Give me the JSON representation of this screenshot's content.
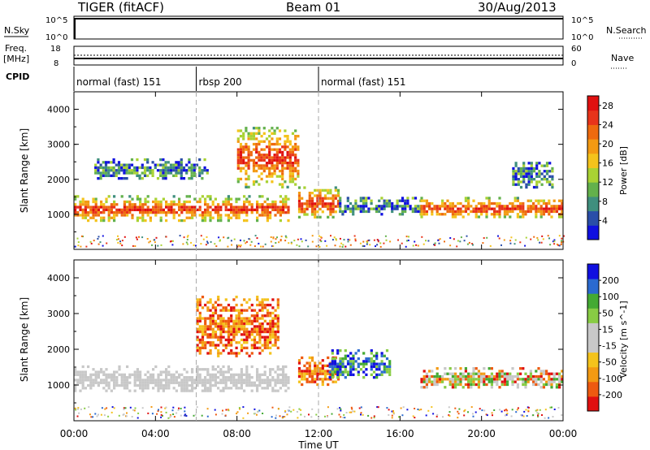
{
  "header": {
    "radar": "TIGER (fitACF)",
    "beam": "Beam 01",
    "date": "30/Aug/2013"
  },
  "meta_rows": {
    "nsky": {
      "label": "N.Sky",
      "ticks": [
        "10^5",
        "10^0"
      ]
    },
    "nsearch": {
      "label": "N.Search",
      "ticks": [
        "10^5",
        "10^0"
      ]
    },
    "freq": {
      "label_line1": "Freq.",
      "label_line2": "[MHz]",
      "ticks": [
        "18",
        "8"
      ]
    },
    "nave": {
      "label": "Nave",
      "ticks": [
        "60",
        "0"
      ]
    },
    "cpid": {
      "label": "CPID",
      "segments": [
        {
          "text": "normal (fast) 151",
          "start_hour": 0
        },
        {
          "text": "rbsp 200",
          "start_hour": 6
        },
        {
          "text": "normal (fast) 151",
          "start_hour": 12
        }
      ]
    }
  },
  "chart_data": [
    {
      "type": "heatmap",
      "title": "",
      "xlabel": "Time UT",
      "ylabel": "Slant Range [km]",
      "xlim": [
        0,
        24
      ],
      "ylim": [
        0,
        4500
      ],
      "x_ticks": [
        "00:00",
        "04:00",
        "08:00",
        "12:00",
        "16:00",
        "20:00",
        "00:00"
      ],
      "y_ticks": [
        1000,
        2000,
        3000,
        4000
      ],
      "colorbar": {
        "label": "Power [dB]",
        "ticks": [
          4,
          8,
          12,
          16,
          20,
          24,
          28
        ],
        "range": [
          0,
          30
        ],
        "colors": [
          "#1010e0",
          "#2a4ea8",
          "#3f8f7e",
          "#63b14c",
          "#a9d233",
          "#f4c31c",
          "#f39a13",
          "#ee6a0e",
          "#e8341a",
          "#e01010"
        ]
      },
      "echo_regions": [
        {
          "h0": 0.0,
          "h1": 10.5,
          "r0": 800,
          "r1": 1550,
          "level": "high"
        },
        {
          "h0": 8.0,
          "h1": 11.0,
          "r0": 1800,
          "r1": 3500,
          "level": "high"
        },
        {
          "h0": 1.0,
          "h1": 6.5,
          "r0": 2000,
          "r1": 2600,
          "level": "low"
        },
        {
          "h0": 11.0,
          "h1": 13.0,
          "r0": 900,
          "r1": 1800,
          "level": "high"
        },
        {
          "h0": 13.0,
          "h1": 17.0,
          "r0": 1000,
          "r1": 1500,
          "level": "low"
        },
        {
          "h0": 17.0,
          "h1": 24.0,
          "r0": 900,
          "r1": 1500,
          "level": "high"
        },
        {
          "h0": 21.5,
          "h1": 23.5,
          "r0": 1800,
          "r1": 2500,
          "level": "low"
        }
      ]
    },
    {
      "type": "heatmap",
      "title": "",
      "xlabel": "Time UT",
      "ylabel": "Slant Range [km]",
      "xlim": [
        0,
        24
      ],
      "ylim": [
        0,
        4500
      ],
      "x_ticks": [
        "00:00",
        "04:00",
        "08:00",
        "12:00",
        "16:00",
        "20:00",
        "00:00"
      ],
      "y_ticks": [
        1000,
        2000,
        3000,
        4000
      ],
      "colorbar": {
        "label": "Velocity [m s^-1]",
        "ticks": [
          200,
          100,
          50,
          15,
          -15,
          -50,
          -100,
          -200
        ],
        "range": [
          -250,
          250
        ],
        "colors": [
          "#e01010",
          "#ee5a10",
          "#f39a13",
          "#f4c31c",
          "#c8c8c8",
          "#c8c8c8",
          "#88cc44",
          "#44aa33",
          "#2a6ad0",
          "#1010e0"
        ]
      },
      "echo_regions": [
        {
          "h0": 0.0,
          "h1": 10.5,
          "r0": 800,
          "r1": 1550,
          "level": "ground"
        },
        {
          "h0": 6.0,
          "h1": 10.0,
          "r0": 1800,
          "r1": 3500,
          "level": "negative"
        },
        {
          "h0": 11.0,
          "h1": 13.0,
          "r0": 1000,
          "r1": 1800,
          "level": "negative"
        },
        {
          "h0": 12.5,
          "h1": 15.5,
          "r0": 1200,
          "r1": 2000,
          "level": "positive"
        },
        {
          "h0": 17.0,
          "h1": 24.0,
          "r0": 900,
          "r1": 1500,
          "level": "mixed"
        }
      ]
    }
  ]
}
